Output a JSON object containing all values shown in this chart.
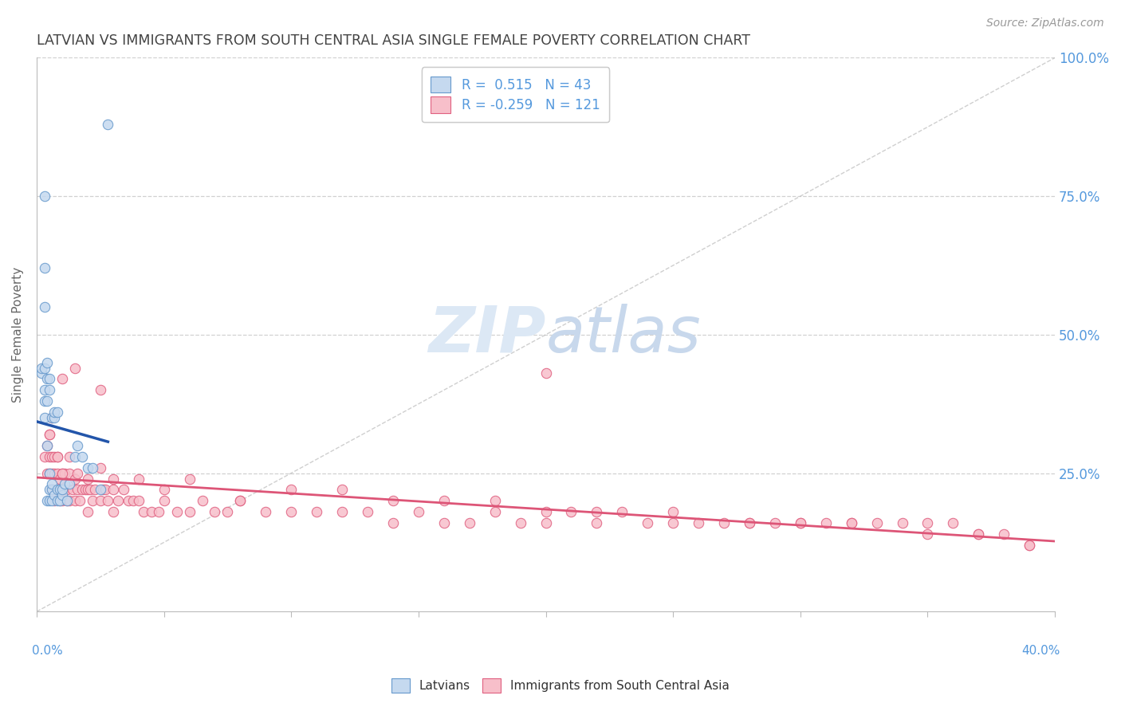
{
  "title": "LATVIAN VS IMMIGRANTS FROM SOUTH CENTRAL ASIA SINGLE FEMALE POVERTY CORRELATION CHART",
  "source": "Source: ZipAtlas.com",
  "ylabel": "Single Female Poverty",
  "xmin": 0.0,
  "xmax": 0.4,
  "ymin": 0.0,
  "ymax": 1.0,
  "r_latvian": 0.515,
  "n_latvian": 43,
  "r_immigrant": -0.259,
  "n_immigrant": 121,
  "color_latvian_fill": "#c5d9ef",
  "color_latvian_edge": "#6699cc",
  "color_immigrant_fill": "#f7bfca",
  "color_immigrant_edge": "#e06080",
  "color_latvian_line": "#2255aa",
  "color_immigrant_line": "#dd5577",
  "color_diag": "#bbbbbb",
  "watermark_zip_color": "#dde8f4",
  "watermark_atlas_color": "#c8d8ec",
  "background_color": "#ffffff",
  "grid_color": "#cccccc",
  "title_color": "#444444",
  "axis_label_color": "#5599dd",
  "ytick_right": [
    "25.0%",
    "50.0%",
    "75.0%",
    "100.0%"
  ],
  "ytick_vals": [
    0.25,
    0.5,
    0.75,
    1.0
  ],
  "lat_x": [
    0.002,
    0.002,
    0.003,
    0.003,
    0.003,
    0.003,
    0.003,
    0.004,
    0.004,
    0.004,
    0.004,
    0.004,
    0.005,
    0.005,
    0.005,
    0.005,
    0.005,
    0.006,
    0.006,
    0.006,
    0.006,
    0.007,
    0.007,
    0.007,
    0.008,
    0.008,
    0.008,
    0.009,
    0.009,
    0.01,
    0.01,
    0.011,
    0.012,
    0.013,
    0.015,
    0.016,
    0.018,
    0.02,
    0.022,
    0.025,
    0.003,
    0.003,
    0.028
  ],
  "lat_y": [
    0.43,
    0.44,
    0.35,
    0.38,
    0.4,
    0.44,
    0.75,
    0.2,
    0.3,
    0.38,
    0.42,
    0.45,
    0.2,
    0.22,
    0.25,
    0.4,
    0.42,
    0.2,
    0.22,
    0.23,
    0.35,
    0.21,
    0.35,
    0.36,
    0.2,
    0.22,
    0.36,
    0.2,
    0.22,
    0.21,
    0.22,
    0.23,
    0.2,
    0.23,
    0.28,
    0.3,
    0.28,
    0.26,
    0.26,
    0.22,
    0.55,
    0.62,
    0.88
  ],
  "imm_x": [
    0.003,
    0.004,
    0.004,
    0.005,
    0.005,
    0.005,
    0.006,
    0.006,
    0.006,
    0.007,
    0.007,
    0.007,
    0.008,
    0.008,
    0.008,
    0.009,
    0.009,
    0.01,
    0.01,
    0.01,
    0.011,
    0.011,
    0.012,
    0.012,
    0.013,
    0.013,
    0.014,
    0.015,
    0.015,
    0.016,
    0.017,
    0.018,
    0.019,
    0.02,
    0.02,
    0.021,
    0.022,
    0.023,
    0.025,
    0.026,
    0.027,
    0.028,
    0.03,
    0.03,
    0.032,
    0.034,
    0.036,
    0.038,
    0.04,
    0.042,
    0.045,
    0.048,
    0.05,
    0.055,
    0.06,
    0.065,
    0.07,
    0.075,
    0.08,
    0.09,
    0.1,
    0.11,
    0.12,
    0.13,
    0.14,
    0.15,
    0.16,
    0.17,
    0.18,
    0.19,
    0.2,
    0.21,
    0.22,
    0.23,
    0.24,
    0.25,
    0.26,
    0.27,
    0.28,
    0.29,
    0.3,
    0.31,
    0.32,
    0.33,
    0.34,
    0.35,
    0.36,
    0.37,
    0.38,
    0.39,
    0.005,
    0.008,
    0.01,
    0.013,
    0.016,
    0.02,
    0.025,
    0.03,
    0.04,
    0.05,
    0.06,
    0.08,
    0.1,
    0.12,
    0.14,
    0.16,
    0.18,
    0.2,
    0.22,
    0.25,
    0.28,
    0.3,
    0.32,
    0.35,
    0.37,
    0.39,
    0.006,
    0.01,
    0.015,
    0.025,
    0.2
  ],
  "imm_y": [
    0.28,
    0.25,
    0.3,
    0.25,
    0.28,
    0.32,
    0.22,
    0.25,
    0.28,
    0.2,
    0.25,
    0.28,
    0.22,
    0.25,
    0.28,
    0.2,
    0.24,
    0.2,
    0.22,
    0.25,
    0.22,
    0.25,
    0.2,
    0.22,
    0.2,
    0.25,
    0.22,
    0.2,
    0.24,
    0.22,
    0.2,
    0.22,
    0.22,
    0.18,
    0.22,
    0.22,
    0.2,
    0.22,
    0.2,
    0.22,
    0.22,
    0.2,
    0.18,
    0.22,
    0.2,
    0.22,
    0.2,
    0.2,
    0.2,
    0.18,
    0.18,
    0.18,
    0.2,
    0.18,
    0.18,
    0.2,
    0.18,
    0.18,
    0.2,
    0.18,
    0.18,
    0.18,
    0.18,
    0.18,
    0.16,
    0.18,
    0.16,
    0.16,
    0.18,
    0.16,
    0.16,
    0.18,
    0.16,
    0.18,
    0.16,
    0.16,
    0.16,
    0.16,
    0.16,
    0.16,
    0.16,
    0.16,
    0.16,
    0.16,
    0.16,
    0.14,
    0.16,
    0.14,
    0.14,
    0.12,
    0.32,
    0.28,
    0.25,
    0.28,
    0.25,
    0.24,
    0.26,
    0.24,
    0.24,
    0.22,
    0.24,
    0.2,
    0.22,
    0.22,
    0.2,
    0.2,
    0.2,
    0.18,
    0.18,
    0.18,
    0.16,
    0.16,
    0.16,
    0.16,
    0.14,
    0.12,
    0.35,
    0.42,
    0.44,
    0.4,
    0.43
  ]
}
